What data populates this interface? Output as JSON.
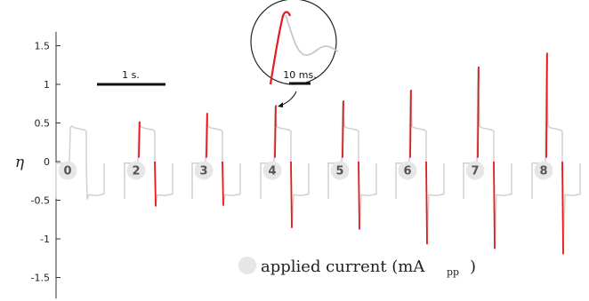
{
  "chart_data": {
    "type": "line",
    "ylabel": "η",
    "ylim": [
      -1.75,
      1.75
    ],
    "yticks": [
      1.5,
      1,
      0.5,
      0,
      -0.5,
      -1,
      -1.5
    ],
    "ytick_labels": [
      "1.5",
      "1",
      "0.5",
      "0",
      "-0.5",
      "-1",
      "-1.5"
    ],
    "series": [
      {
        "label": "0",
        "peak": 0.45,
        "trough": -0.5
      },
      {
        "label": "2",
        "peak": 0.52,
        "trough": -0.58
      },
      {
        "label": "3",
        "peak": 0.63,
        "trough": -0.57
      },
      {
        "label": "4",
        "peak": 0.73,
        "trough": -0.86
      },
      {
        "label": "5",
        "peak": 0.79,
        "trough": -0.88
      },
      {
        "label": "6",
        "peak": 0.93,
        "trough": -1.07
      },
      {
        "label": "7",
        "peak": 1.23,
        "trough": -1.13
      },
      {
        "label": "8",
        "peak": 1.41,
        "trough": -1.2
      }
    ],
    "scale_bar_label": "1 s.",
    "inset_scale_label": "10 ms.",
    "legend_label": "applied current (mA",
    "legend_sub": "pp",
    "legend_close": ")",
    "colors": {
      "measured": "#d0d0d0",
      "highlight": "#e41a1c",
      "badge": "#e6e6e6"
    }
  }
}
